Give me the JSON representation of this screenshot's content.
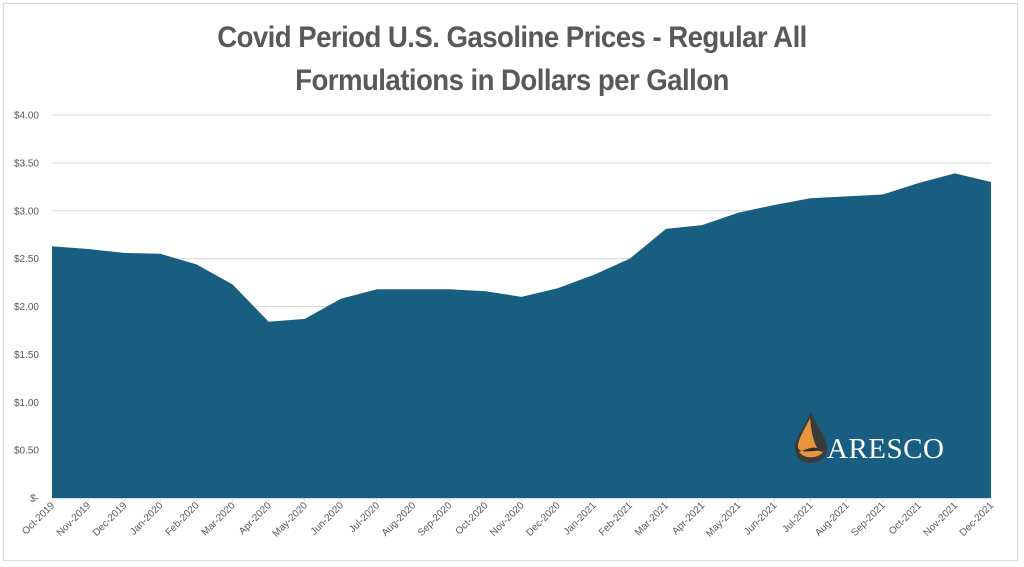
{
  "title_line1": "Covid Period U.S. Gasoline Prices - Regular All",
  "title_line2": "Formulations in Dollars per Gallon",
  "logo": {
    "text": "ARESCO",
    "icon": "oil-drop-icon"
  },
  "colors": {
    "area_fill": "#185e80",
    "grid": "#d9d9d9",
    "text": "#595959",
    "logo_orange": "#e8963c"
  },
  "chart_data": {
    "type": "area",
    "title": "Covid Period U.S. Gasoline Prices - Regular All Formulations in Dollars per Gallon",
    "xlabel": "",
    "ylabel": "",
    "ylim": [
      0,
      4
    ],
    "yticks": [
      "$-",
      "$0.50",
      "$1.00",
      "$1.50",
      "$2.00",
      "$2.50",
      "$3.00",
      "$3.50",
      "$4.00"
    ],
    "grid": true,
    "legend": "none",
    "categories": [
      "Oct-2019",
      "Nov-2019",
      "Dec-2019",
      "Jan-2020",
      "Feb-2020",
      "Mar-2020",
      "Apr-2020",
      "May-2020",
      "Jun-2020",
      "Jul-2020",
      "Aug-2020",
      "Sep-2020",
      "Oct-2020",
      "Nov-2020",
      "Dec-2020",
      "Jan-2021",
      "Feb-2021",
      "Mar-2021",
      "Apr-2021",
      "May-2021",
      "Jun-2021",
      "Jul-2021",
      "Aug-2021",
      "Sep-2021",
      "Oct-2021",
      "Nov-2021",
      "Dec-2021"
    ],
    "series": [
      {
        "name": "Regular All Formulations ($/gal)",
        "values": [
          2.63,
          2.6,
          2.56,
          2.55,
          2.44,
          2.23,
          1.84,
          1.87,
          2.08,
          2.18,
          2.18,
          2.18,
          2.16,
          2.1,
          2.19,
          2.33,
          2.5,
          2.81,
          2.85,
          2.98,
          3.06,
          3.13,
          3.15,
          3.17,
          3.29,
          3.39,
          3.3
        ]
      }
    ]
  }
}
